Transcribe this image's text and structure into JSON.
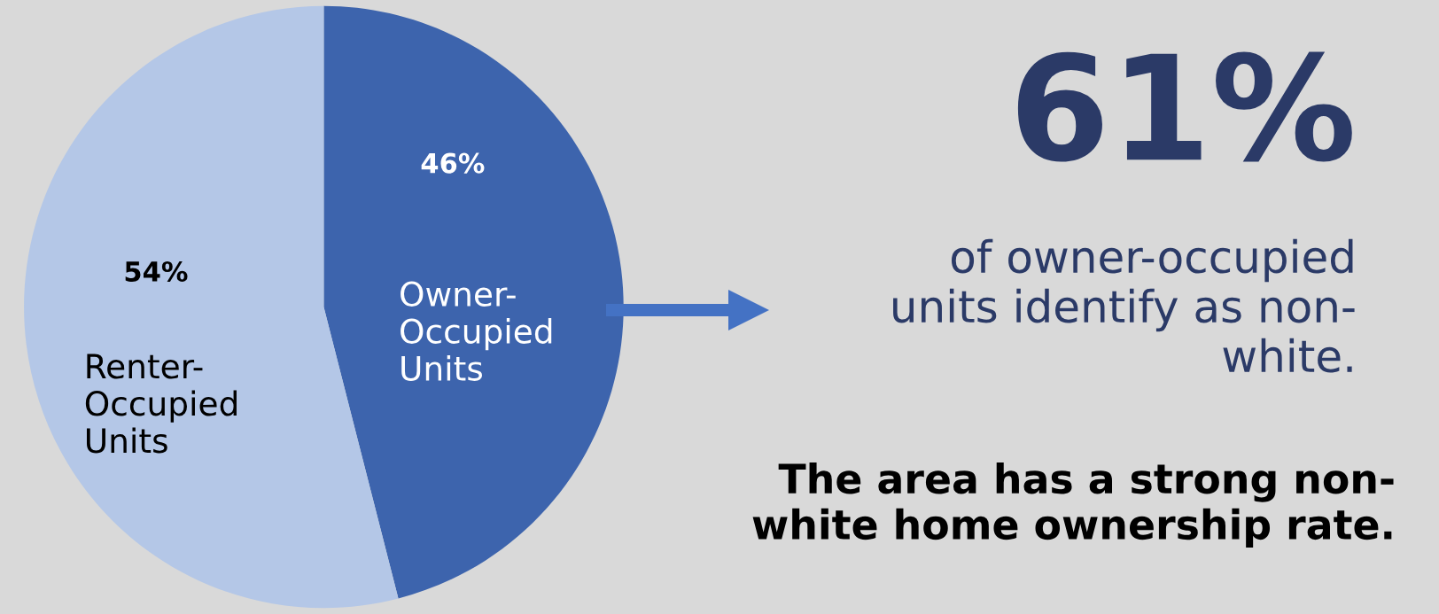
{
  "chart_data": {
    "type": "pie",
    "categories": [
      "Owner-\nOccupied\nUnits",
      "Renter-\nOccupied\nUnits"
    ],
    "values": [
      46,
      54
    ],
    "colors": [
      "#3d64ad",
      "#b4c7e7"
    ],
    "value_labels": [
      "46%",
      "54%"
    ],
    "annotations": [
      "61%",
      "of owner-occupied\nunits identify as non-\nwhite.",
      "The area has a strong non-\nwhite home ownership rate."
    ]
  }
}
